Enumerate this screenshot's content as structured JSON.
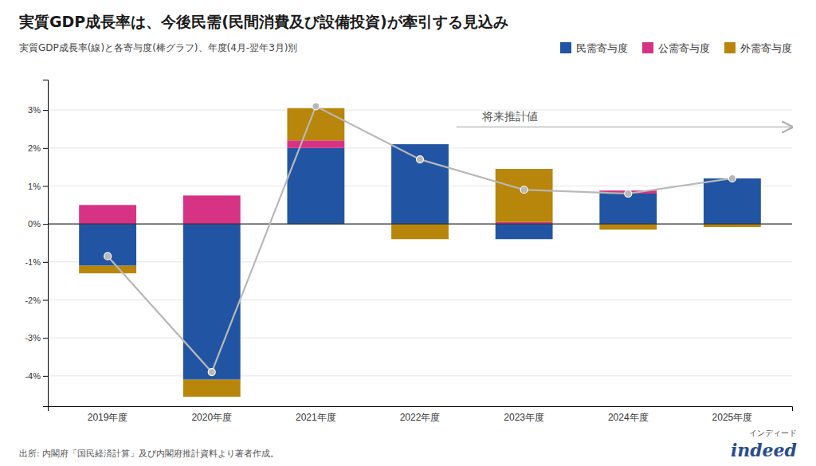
{
  "chart_data": {
    "type": "bar",
    "stacked": true,
    "title": "実質GDP成長率は、今後民需(民間消費及び設備投資)が牽引する見込み",
    "subtitle": "実質GDP成長率(線)と各寄与度(棒グラフ)、年度(4月-翌年3月)別",
    "categories": [
      "2019年度",
      "2020年度",
      "2021年度",
      "2022年度",
      "2023年度",
      "2024年度",
      "2025年度"
    ],
    "series": [
      {
        "name": "民需寄与度",
        "color": "#2155A3",
        "values": [
          -1.1,
          -4.1,
          2.0,
          2.1,
          -0.4,
          0.8,
          1.2
        ]
      },
      {
        "name": "公需寄与度",
        "color": "#D63384",
        "values": [
          0.5,
          0.75,
          0.2,
          0.0,
          0.05,
          0.08,
          0.0
        ]
      },
      {
        "name": "外需寄与度",
        "color": "#B8860B",
        "values": [
          -0.2,
          -0.45,
          0.85,
          -0.4,
          1.4,
          -0.15,
          -0.08
        ]
      },
      {
        "type": "line",
        "color": "#b8b8b8",
        "marker": "circle",
        "values": [
          -0.85,
          -3.9,
          3.1,
          1.7,
          0.9,
          0.8,
          1.2
        ]
      }
    ],
    "ylim": [
      -4.8,
      3.8
    ],
    "yticks": [
      {
        "value": -4,
        "label": "-4%"
      },
      {
        "value": -3,
        "label": "-3%"
      },
      {
        "value": -2,
        "label": "-2%"
      },
      {
        "value": -1,
        "label": "-1%"
      },
      {
        "value": 0,
        "label": "0%"
      },
      {
        "value": 1,
        "label": "1%"
      },
      {
        "value": 2,
        "label": "2%"
      },
      {
        "value": 3,
        "label": "3%"
      }
    ],
    "grid": true,
    "legend": "upper right",
    "annotation": "将来推計値",
    "source": "出所: 内閣府「国民経済計算」及び内閣府推計資料より著者作成。",
    "logo_text": [
      "インディード",
      "indeed"
    ]
  }
}
